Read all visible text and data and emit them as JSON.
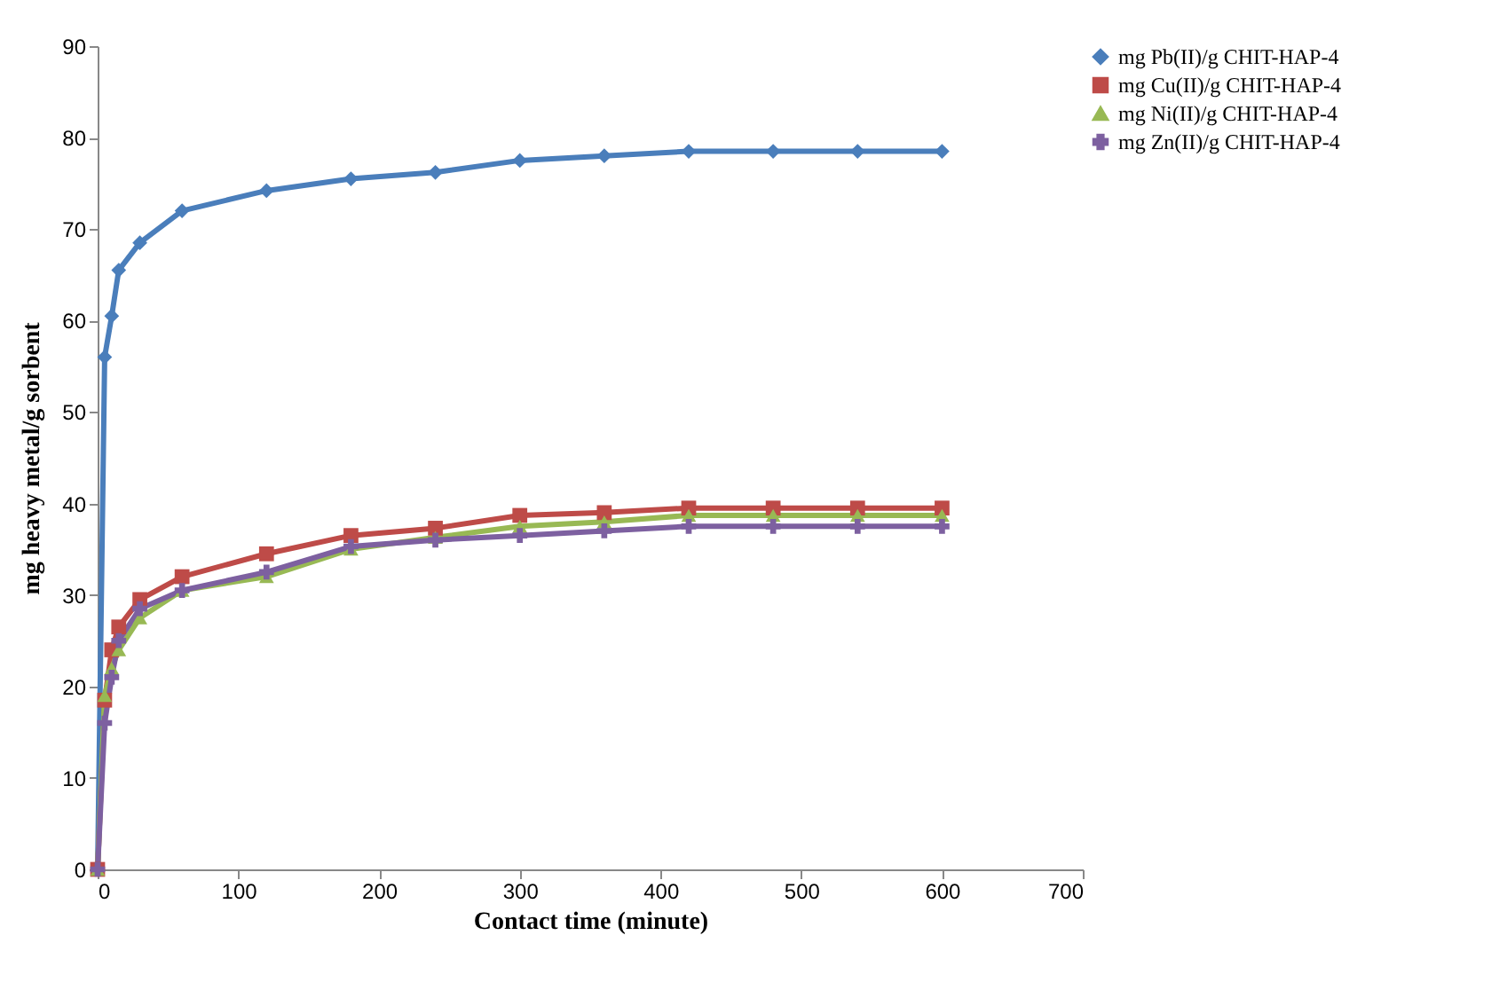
{
  "chart_data": {
    "type": "line",
    "xlabel": "Contact time (minute)",
    "ylabel": "mg heavy metal/g sorbent",
    "x": [
      0,
      5,
      10,
      15,
      30,
      60,
      120,
      180,
      240,
      300,
      360,
      420,
      480,
      540,
      600
    ],
    "series": [
      {
        "name": "mg Pb(II)/g CHIT-HAP-4",
        "color": "#4a7ebb",
        "marker": "diamond",
        "values": [
          0,
          56,
          60.5,
          65.5,
          68.5,
          72,
          74.2,
          75.5,
          76.2,
          77.5,
          78,
          78.5,
          78.5,
          78.5,
          78.5
        ]
      },
      {
        "name": "mg Cu(II)/g CHIT-HAP-4",
        "color": "#be4b48",
        "marker": "square",
        "values": [
          0,
          18.5,
          24,
          26.5,
          29.5,
          32,
          34.5,
          36.5,
          37.3,
          38.7,
          39,
          39.5,
          39.5,
          39.5,
          39.5
        ]
      },
      {
        "name": "mg Ni(II)/g CHIT-HAP-4",
        "color": "#98b954",
        "marker": "triangle",
        "values": [
          0,
          19,
          22,
          24,
          27.5,
          30.5,
          32,
          35,
          36.3,
          37.5,
          38,
          38.7,
          38.7,
          38.7,
          38.7
        ]
      },
      {
        "name": "mg Zn(II)/g CHIT-HAP-4",
        "color": "#7d60a0",
        "marker": "cross",
        "values": [
          0,
          16,
          21,
          25,
          28.5,
          30.5,
          32.5,
          35.3,
          36,
          36.5,
          37,
          37.5,
          37.5,
          37.5,
          37.5
        ]
      }
    ],
    "xlim": [
      0,
      700
    ],
    "xticks": [
      0,
      100,
      200,
      300,
      400,
      500,
      600,
      700
    ],
    "ylim": [
      0,
      90
    ],
    "yticks": [
      0,
      10,
      20,
      30,
      40,
      50,
      60,
      70,
      80,
      90
    ],
    "legend": "right",
    "grid": false,
    "line_style": "solid"
  }
}
